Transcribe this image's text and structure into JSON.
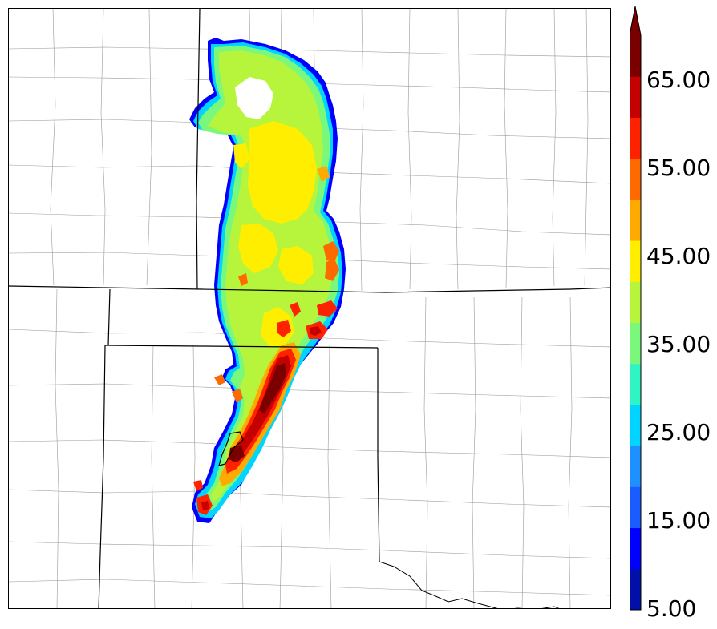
{
  "map": {
    "features": [
      "county-boundaries",
      "state-boundaries",
      "river"
    ],
    "field_colors": [
      "#0010a8",
      "#0000ff",
      "#1a5cff",
      "#1e90ff",
      "#00d4ff",
      "#2ff5c5",
      "#79f87c",
      "#b6f53c",
      "#ffee00",
      "#ffaa00",
      "#ff6a00",
      "#ff2200",
      "#c40000",
      "#7a0000"
    ]
  },
  "colorbar": {
    "labels": [
      "65.00",
      "55.00",
      "45.00",
      "35.00",
      "25.00",
      "15.00",
      "5.00"
    ],
    "extend": "max",
    "colors": [
      "#0010a8",
      "#0000ff",
      "#1a5cff",
      "#1e90ff",
      "#00d4ff",
      "#2ff5c5",
      "#79f87c",
      "#b6f53c",
      "#ffee00",
      "#ffaa00",
      "#ff6a00",
      "#ff2200",
      "#c40000",
      "#7a0000"
    ]
  }
}
